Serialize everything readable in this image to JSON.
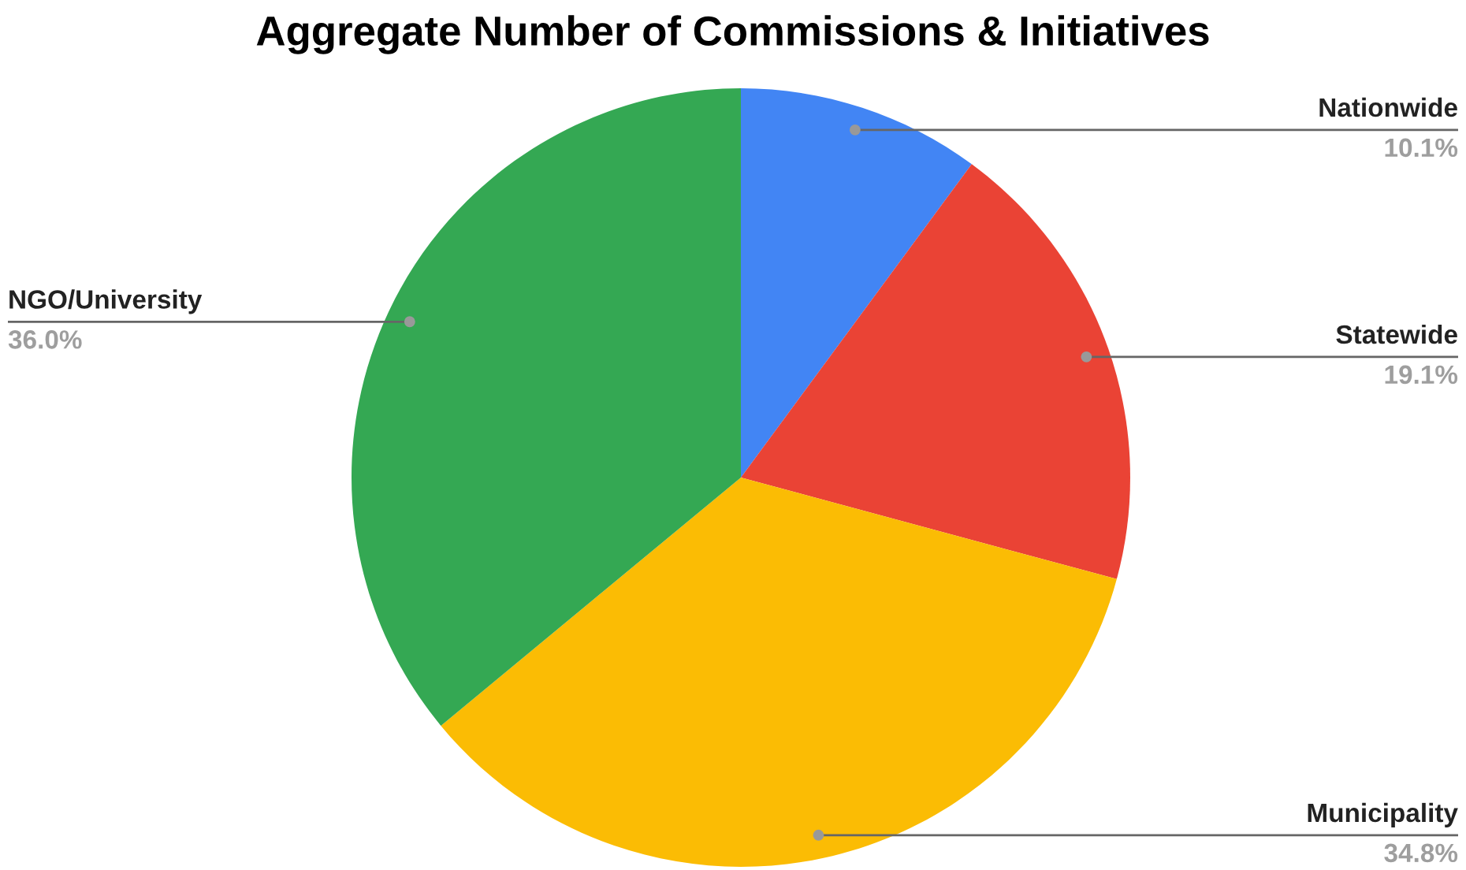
{
  "chart_data": {
    "type": "pie",
    "title": "Aggregate Number of Commissions & Initiatives",
    "categories": [
      "Nationwide",
      "Statewide",
      "Municipality",
      "NGO/University"
    ],
    "values": [
      10.1,
      19.1,
      34.8,
      36.0
    ],
    "colors": [
      "#4285f4",
      "#ea4335",
      "#fbbc04",
      "#34a853"
    ],
    "value_labels": [
      "10.1%",
      "19.1%",
      "34.8%",
      "36.0%"
    ],
    "legend": false
  }
}
